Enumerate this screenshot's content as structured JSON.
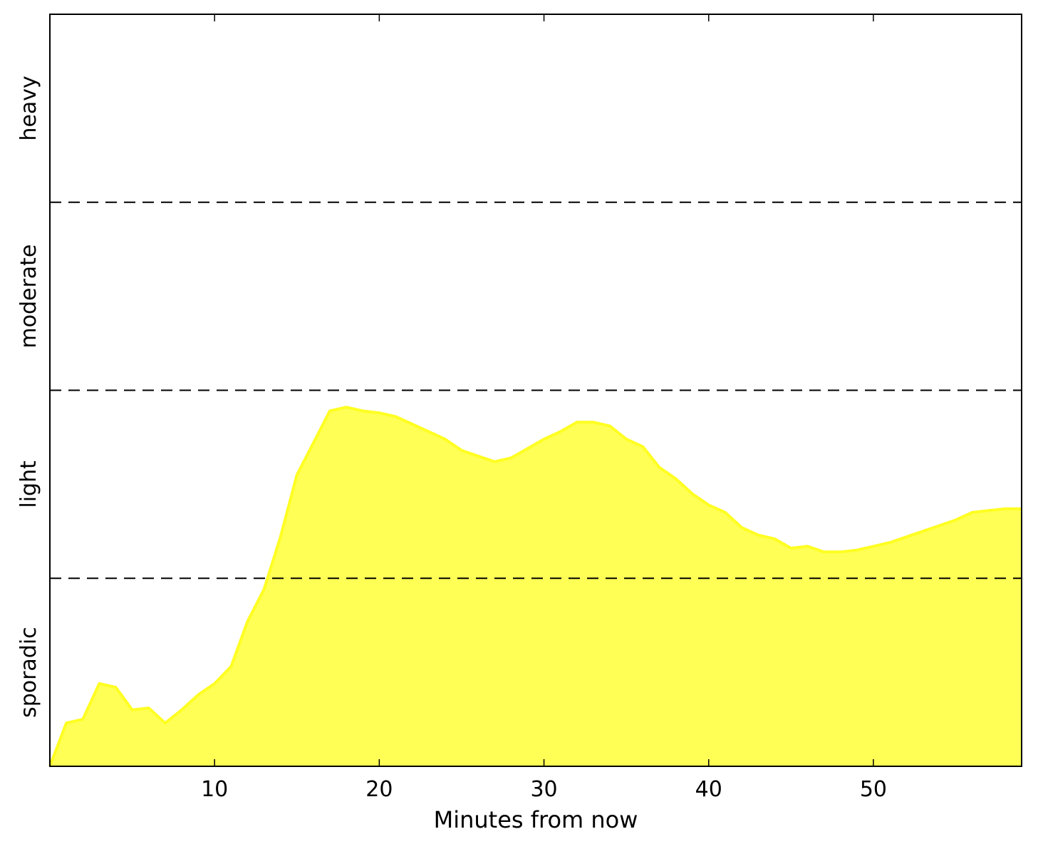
{
  "chart_data": {
    "type": "area",
    "xlabel": "Minutes from now",
    "ylabel": "",
    "xlim": [
      0,
      59
    ],
    "ylim": [
      0,
      4
    ],
    "x_ticks": [
      10,
      20,
      30,
      40,
      50
    ],
    "y_bands": [
      {
        "label": "sporadic",
        "from": 0,
        "to": 1
      },
      {
        "label": "light",
        "from": 1,
        "to": 2
      },
      {
        "label": "moderate",
        "from": 2,
        "to": 3
      },
      {
        "label": "heavy",
        "from": 3,
        "to": 4
      }
    ],
    "thresholds": [
      1,
      2,
      3
    ],
    "grid": false,
    "fill_color": "#ffff55",
    "line_color": "#ffff22",
    "series": [
      {
        "x": [
          0,
          1,
          2,
          3,
          4,
          5,
          6,
          7,
          8,
          9,
          10,
          11,
          12,
          13,
          14,
          15,
          16,
          17,
          18,
          19,
          20,
          21,
          22,
          23,
          24,
          25,
          26,
          27,
          28,
          29,
          30,
          31,
          32,
          33,
          34,
          35,
          36,
          37,
          38,
          39,
          40,
          41,
          42,
          43,
          44,
          45,
          46,
          47,
          48,
          49,
          50,
          51,
          52,
          53,
          54,
          55,
          56,
          57,
          58,
          59
        ],
        "values": [
          0.0,
          0.23,
          0.25,
          0.44,
          0.42,
          0.3,
          0.31,
          0.23,
          0.3,
          0.38,
          0.44,
          0.53,
          0.77,
          0.94,
          1.22,
          1.55,
          1.72,
          1.89,
          1.91,
          1.89,
          1.88,
          1.86,
          1.82,
          1.78,
          1.74,
          1.68,
          1.65,
          1.62,
          1.64,
          1.69,
          1.74,
          1.78,
          1.83,
          1.83,
          1.81,
          1.74,
          1.7,
          1.59,
          1.53,
          1.45,
          1.39,
          1.35,
          1.27,
          1.23,
          1.21,
          1.16,
          1.17,
          1.14,
          1.14,
          1.15,
          1.17,
          1.19,
          1.22,
          1.25,
          1.28,
          1.31,
          1.35,
          1.36,
          1.37,
          1.37
        ]
      }
    ]
  }
}
